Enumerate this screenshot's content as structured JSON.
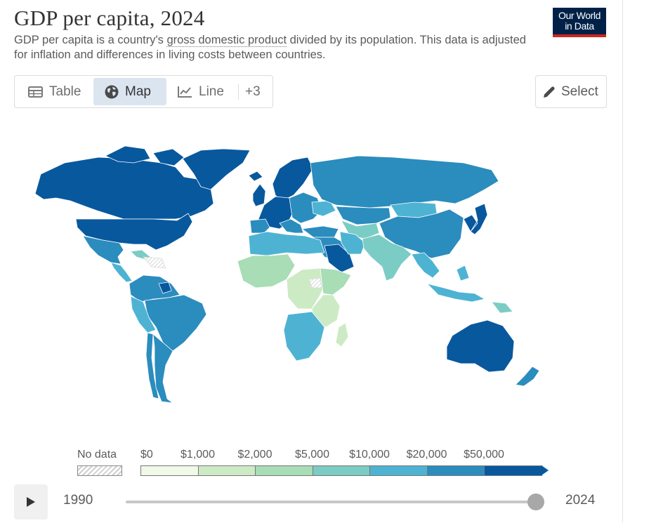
{
  "header": {
    "title": "GDP per capita, 2024",
    "subtitle_before": "GDP per capita is a country's ",
    "subtitle_link": "gross domestic product",
    "subtitle_after": " divided by its population. This data is adjusted for inflation and differences in living costs between countries.",
    "logo_line1": "Our World",
    "logo_line2": "in Data"
  },
  "tabs": [
    {
      "label": "Table",
      "icon": "table-icon",
      "active": false
    },
    {
      "label": "Map",
      "icon": "globe-icon",
      "active": true
    },
    {
      "label": "Line",
      "icon": "line-chart-icon",
      "active": false
    },
    {
      "label": "+3",
      "icon": "",
      "active": false
    }
  ],
  "select_button": {
    "label": "Select",
    "icon": "pencil-icon"
  },
  "legend": {
    "no_data_label": "No data",
    "bins": [
      {
        "label": "$0",
        "color": "#f0f9e8"
      },
      {
        "label": "$1,000",
        "color": "#ccebc5"
      },
      {
        "label": "$2,000",
        "color": "#a8ddb5"
      },
      {
        "label": "$5,000",
        "color": "#7bccc4"
      },
      {
        "label": "$10,000",
        "color": "#4eb3d3"
      },
      {
        "label": "$20,000",
        "color": "#2b8cbe"
      },
      {
        "label": "$50,000",
        "color": "#08589e"
      }
    ]
  },
  "timeline": {
    "start_year": "1990",
    "end_year": "2024",
    "position": 1.0,
    "play_icon": "play-icon"
  },
  "colors": {
    "brand_navy": "#002147",
    "brand_red": "#ce261e",
    "active_tab": "#dbe5f0"
  }
}
